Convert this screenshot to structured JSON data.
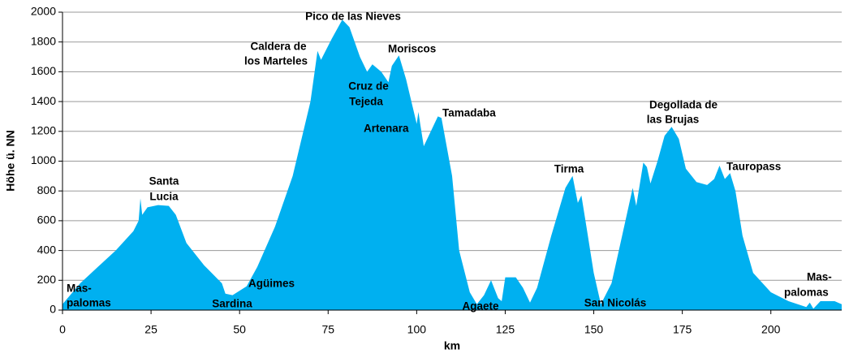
{
  "chart_data": {
    "type": "area",
    "y_label": "Höhe ü. NN",
    "x_label": "km",
    "color": "#00b0f0",
    "grid": true,
    "xlim": [
      0,
      220
    ],
    "xticks": [
      0,
      25,
      50,
      75,
      100,
      125,
      150,
      175,
      200
    ],
    "ylim": [
      0,
      2000
    ],
    "yticks": [
      0,
      200,
      400,
      600,
      800,
      1000,
      1200,
      1400,
      1600,
      1800,
      2000
    ],
    "x": [
      0,
      5,
      10,
      15,
      20,
      21.5,
      22,
      22.5,
      24,
      27,
      30,
      32,
      35,
      40,
      45,
      46,
      48,
      52,
      55,
      60,
      65,
      70,
      72,
      73,
      76,
      79,
      81,
      84,
      86,
      87.5,
      90,
      92,
      93,
      95,
      97,
      100,
      100.5,
      101,
      102,
      104,
      106,
      107,
      110,
      112,
      115,
      117,
      119,
      121,
      123,
      124,
      125,
      128,
      130,
      132,
      134,
      138,
      142,
      144,
      145.5,
      146.5,
      148,
      150,
      152,
      155,
      158,
      161,
      162,
      164,
      165,
      166,
      168,
      170,
      172,
      174,
      176,
      179,
      182,
      184,
      185.5,
      187,
      188.5,
      190,
      192,
      195,
      200,
      205,
      210,
      211,
      212,
      214,
      218,
      220
    ],
    "values": [
      40,
      180,
      290,
      400,
      530,
      600,
      750,
      640,
      690,
      705,
      700,
      640,
      450,
      300,
      180,
      110,
      100,
      160,
      290,
      560,
      900,
      1400,
      1740,
      1680,
      1820,
      1950,
      1900,
      1700,
      1600,
      1650,
      1600,
      1530,
      1640,
      1710,
      1550,
      1250,
      1330,
      1250,
      1100,
      1200,
      1300,
      1290,
      900,
      400,
      120,
      40,
      100,
      200,
      80,
      60,
      220,
      220,
      150,
      50,
      150,
      500,
      820,
      900,
      720,
      770,
      550,
      250,
      40,
      180,
      500,
      820,
      700,
      990,
      960,
      850,
      1000,
      1170,
      1230,
      1150,
      950,
      860,
      840,
      880,
      970,
      880,
      920,
      800,
      500,
      250,
      120,
      60,
      20,
      50,
      10,
      60,
      60,
      40
    ],
    "annotations": [
      [
        "Mas-",
        "palomas"
      ],
      [
        "Santa",
        "Lucia"
      ],
      [
        "Sardina"
      ],
      [
        "Agüimes"
      ],
      [
        "Caldera de",
        "los Marteles"
      ],
      [
        "Pico de las Nieves"
      ],
      [
        "Moriscos"
      ],
      [
        "Cruz de",
        "Tejeda"
      ],
      [
        "Artenara"
      ],
      [
        "Tamadaba"
      ],
      [
        "Agaete"
      ],
      [
        "Tirma"
      ],
      [
        "San Nicolás"
      ],
      [
        "Degollada de",
        "las Brujas"
      ],
      [
        "Tauropass"
      ],
      [
        "Mas-",
        "palomas"
      ]
    ]
  }
}
